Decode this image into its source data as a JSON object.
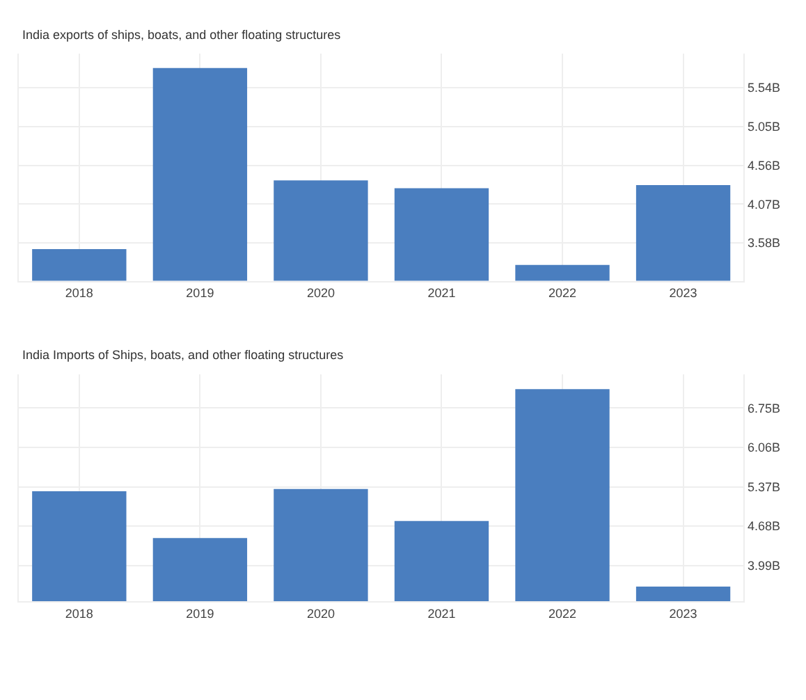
{
  "chart_data": [
    {
      "type": "bar",
      "title": "India exports of ships, boats, and other floating structures",
      "categories": [
        "2018",
        "2019",
        "2020",
        "2021",
        "2022",
        "2023"
      ],
      "values": [
        3.5,
        5.79,
        4.37,
        4.27,
        3.3,
        4.31
      ],
      "color": "#4a7ebf",
      "ylim": [
        3.1,
        5.97
      ],
      "yticks": [
        {
          "value": 3.58,
          "label": "3.58B"
        },
        {
          "value": 4.07,
          "label": "4.07B"
        },
        {
          "value": 4.56,
          "label": "4.56B"
        },
        {
          "value": 5.05,
          "label": "5.05B"
        },
        {
          "value": 5.54,
          "label": "5.54B"
        }
      ],
      "grid": true
    },
    {
      "type": "bar",
      "title": "India Imports of Ships, boats, and other floating structures",
      "categories": [
        "2018",
        "2019",
        "2020",
        "2021",
        "2022",
        "2023"
      ],
      "values": [
        5.29,
        4.47,
        5.33,
        4.77,
        7.08,
        3.62
      ],
      "color": "#4a7ebf",
      "ylim": [
        3.36,
        7.34
      ],
      "yticks": [
        {
          "value": 3.99,
          "label": "3.99B"
        },
        {
          "value": 4.68,
          "label": "4.68B"
        },
        {
          "value": 5.37,
          "label": "5.37B"
        },
        {
          "value": 6.06,
          "label": "6.06B"
        },
        {
          "value": 6.75,
          "label": "6.75B"
        }
      ],
      "grid": true
    }
  ]
}
